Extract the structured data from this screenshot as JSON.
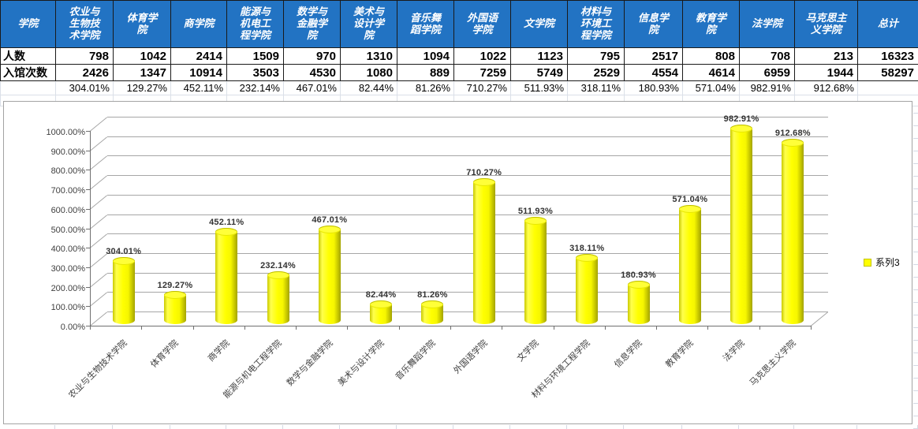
{
  "colors": {
    "header_bg": "#2273c3",
    "header_text": "#ffffff",
    "table_border_dark": "#1a1a1a",
    "sheet_gridline": "#d4d9e4",
    "bar_fill": "#ffff00",
    "chart_gridline": "#a6a6a6",
    "axis_color": "#6f6f6f",
    "chart_border": "#a3a3a3",
    "data_label_color": "#333333"
  },
  "table": {
    "corner_label": "学院",
    "headers": [
      "农业与\n生物技\n术学院",
      "体育学\n院",
      "商学院",
      "能源与\n机电工\n程学院",
      "数学与\n金融学\n院",
      "美术与\n设计学\n院",
      "音乐舞\n蹈学院",
      "外国语\n学院",
      "文学院",
      "材料与\n环境工\n程学院",
      "信息学\n院",
      "教育学\n院",
      "法学院",
      "马克思主\n义学院",
      "总计"
    ],
    "rows": [
      {
        "label": "人数",
        "values": [
          "798",
          "1042",
          "2414",
          "1509",
          "970",
          "1310",
          "1094",
          "1022",
          "1123",
          "795",
          "2517",
          "808",
          "708",
          "213",
          "16323"
        ]
      },
      {
        "label": "入馆次数",
        "values": [
          "2426",
          "1347",
          "10914",
          "3503",
          "4530",
          "1080",
          "889",
          "7259",
          "5749",
          "2529",
          "4554",
          "4614",
          "6959",
          "1944",
          "58297"
        ]
      },
      {
        "label": "",
        "values": [
          "304.01%",
          "129.27%",
          "452.11%",
          "232.14%",
          "467.01%",
          "82.44%",
          "81.26%",
          "710.27%",
          "511.93%",
          "318.11%",
          "180.93%",
          "571.04%",
          "982.91%",
          "912.68%",
          ""
        ]
      }
    ]
  },
  "chart_data": {
    "type": "bar",
    "subtype": "3d-cylinder",
    "title": "",
    "xlabel": "",
    "ylabel": "",
    "categories": [
      "农业与生物技术学院",
      "体育学院",
      "商学院",
      "能源与机电工程学院",
      "数学与金融学院",
      "美术与设计学院",
      "音乐舞蹈学院",
      "外国语学院",
      "文学院",
      "材料与环境工程学院",
      "信息学院",
      "教育学院",
      "法学院",
      "马克思主义学院"
    ],
    "series": [
      {
        "name": "系列3",
        "values": [
          304.01,
          129.27,
          452.11,
          232.14,
          467.01,
          82.44,
          81.26,
          710.27,
          511.93,
          318.11,
          180.93,
          571.04,
          982.91,
          912.68
        ]
      }
    ],
    "data_labels": [
      "304.01%",
      "129.27%",
      "452.11%",
      "232.14%",
      "467.01%",
      "82.44%",
      "81.26%",
      "710.27%",
      "511.93%",
      "318.11%",
      "180.93%",
      "571.04%",
      "982.91%",
      "912.68%"
    ],
    "ylim": [
      0,
      1000
    ],
    "ytick_labels": [
      "0.00%",
      "100.00%",
      "200.00%",
      "300.00%",
      "400.00%",
      "500.00%",
      "600.00%",
      "700.00%",
      "800.00%",
      "900.00%",
      "1000.00%"
    ],
    "grid": true,
    "legend_position": "right",
    "bar_color": "#ffff00"
  }
}
